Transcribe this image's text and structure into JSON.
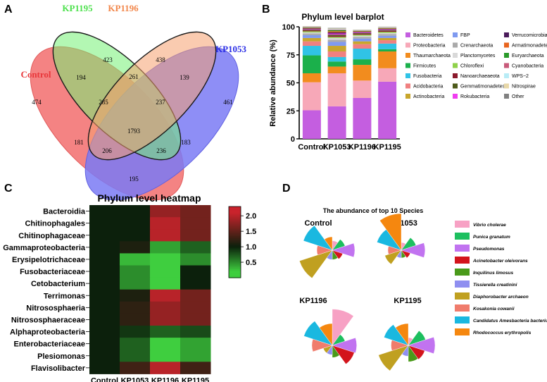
{
  "panel_letters": {
    "a": "A",
    "b": "B",
    "c": "C",
    "d": "D"
  },
  "colors": {
    "control": "#f26d6d",
    "kp1195": "#74f074",
    "kp1196": "#f5a070",
    "kp1053": "#7a7af5",
    "control_text": "#e8373b",
    "kp1195_text": "#4ee14e",
    "kp1196_text": "#f2874b",
    "kp1053_text": "#2b2ee6",
    "heat_low": "#3fce3f",
    "heat_mid": "#0c200c",
    "heat_high": "#c9232c"
  },
  "chart_data": [
    {
      "type": "venn",
      "sets": [
        "Control",
        "KP1195",
        "KP1196",
        "KP1053"
      ],
      "regions": [
        {
          "sets": [
            "Control"
          ],
          "value": 474
        },
        {
          "sets": [
            "KP1195"
          ],
          "value": 423
        },
        {
          "sets": [
            "KP1196"
          ],
          "value": 438
        },
        {
          "sets": [
            "KP1053"
          ],
          "value": 461
        },
        {
          "sets": [
            "Control",
            "KP1195"
          ],
          "value": 194
        },
        {
          "sets": [
            "KP1195",
            "KP1196"
          ],
          "value": 261
        },
        {
          "sets": [
            "KP1196",
            "KP1053"
          ],
          "value": 139
        },
        {
          "sets": [
            "Control",
            "KP1195",
            "KP1196"
          ],
          "value": 285
        },
        {
          "sets": [
            "KP1195",
            "KP1196",
            "KP1053"
          ],
          "value": 237
        },
        {
          "sets": [
            "Control",
            "KP1195",
            "KP1196",
            "KP1053"
          ],
          "value": 1793
        },
        {
          "sets": [
            "Control",
            "KP1053"
          ],
          "value": 195
        },
        {
          "sets": [
            "Control",
            "KP1196"
          ],
          "value": 181
        },
        {
          "sets": [
            "KP1195",
            "KP1053"
          ],
          "value": 183
        },
        {
          "sets": [
            "Control",
            "KP1196",
            "KP1053"
          ],
          "value": 206
        },
        {
          "sets": [
            "Control",
            "KP1195",
            "KP1053"
          ],
          "value": 236
        }
      ]
    },
    {
      "type": "bar",
      "stacked": true,
      "title": "Phylum level barplot",
      "ylabel": "Relative abundance (%)",
      "ylim": [
        0,
        100
      ],
      "yticks": [
        0,
        25,
        50,
        75,
        100
      ],
      "categories": [
        "Control",
        "KP1053",
        "KP1196",
        "KP1195"
      ],
      "series": [
        {
          "name": "Bacteroidetes",
          "color": "#c45ee0",
          "values": [
            25.5,
            29,
            36.5,
            51
          ]
        },
        {
          "name": "Proteobacteria",
          "color": "#f7a8b8",
          "values": [
            25,
            29.5,
            15.5,
            12
          ]
        },
        {
          "name": "Thaumarchaeota",
          "color": "#f28c1e",
          "values": [
            8,
            6,
            14,
            15
          ]
        },
        {
          "name": "Firmicutes",
          "color": "#1bb04b",
          "values": [
            16,
            4.5,
            5,
            2
          ]
        },
        {
          "name": "Fusobacteria",
          "color": "#30c3e6",
          "values": [
            8.5,
            4,
            9.5,
            5
          ]
        },
        {
          "name": "Acidobacteria",
          "color": "#f08080",
          "values": [
            4,
            5,
            4,
            3
          ]
        },
        {
          "name": "Actinobacteria",
          "color": "#c8a62c",
          "values": [
            3,
            5,
            2.5,
            2
          ]
        },
        {
          "name": "FBP",
          "color": "#7f9af0",
          "values": [
            2.5,
            3.5,
            2.5,
            2
          ]
        },
        {
          "name": "Crenarchaeota",
          "color": "#aaaaaa",
          "values": [
            1.5,
            2,
            1.5,
            1.5
          ]
        },
        {
          "name": "Planctomycetes",
          "color": "#d9d9d9",
          "values": [
            1,
            1.5,
            1,
            1
          ]
        },
        {
          "name": "Chloroflexi",
          "color": "#8fd14a",
          "values": [
            1,
            1,
            1,
            1
          ]
        },
        {
          "name": "Nanoarchaeaeota",
          "color": "#8b1a2c",
          "values": [
            0.8,
            1,
            0.8,
            0.8
          ]
        },
        {
          "name": "Gemmatimonadetes",
          "color": "#4d5a1a",
          "values": [
            0.6,
            1,
            0.6,
            0.6
          ]
        },
        {
          "name": "Rokubacteria",
          "color": "#f03cf0",
          "values": [
            0.5,
            1,
            0.5,
            0.5
          ]
        },
        {
          "name": "Verrucomicrobia",
          "color": "#4a1a5a",
          "values": [
            0.6,
            1,
            0.6,
            0.6
          ]
        },
        {
          "name": "Armatimonadetes",
          "color": "#e8641e",
          "values": [
            0.5,
            1,
            0.5,
            0.5
          ]
        },
        {
          "name": "Euryarchaeota",
          "color": "#2a9a2a",
          "values": [
            0.4,
            1,
            0.4,
            0.4
          ]
        },
        {
          "name": "Cyanobacteria",
          "color": "#c85a7a",
          "values": [
            0.3,
            0.5,
            0.3,
            0.3
          ]
        },
        {
          "name": "WPS−2",
          "color": "#b8ecf6",
          "values": [
            0.3,
            0.5,
            0.3,
            0.3
          ]
        },
        {
          "name": "Nitrospirae",
          "color": "#e8d8a8",
          "values": [
            0.3,
            0.5,
            0.3,
            0.3
          ]
        },
        {
          "name": "Other",
          "color": "#808080",
          "values": [
            0.2,
            0.5,
            0.2,
            0.3
          ]
        }
      ]
    },
    {
      "type": "heatmap",
      "title": "Phylum level heatmap",
      "columns": [
        "Control",
        "KP1053",
        "KP1196",
        "KP1195"
      ],
      "rows": [
        "Bacteroidia",
        "Chitinophagales",
        "Chitinophagaceae",
        "Gammaproteobacteria",
        "Erysipelotrichaceae",
        "Fusobacteriaceae",
        "Cetobacterium",
        "Terrimonas",
        "Nitrososphaeria",
        "Nitrososphaeraceae",
        "Alphaproteobacteria",
        "Enterobacteriaceae",
        "Plesiomonas",
        "Flavisolibacter"
      ],
      "values": [
        [
          1.0,
          1.0,
          1.8,
          1.6
        ],
        [
          1.0,
          1.0,
          2.0,
          1.6
        ],
        [
          1.0,
          1.0,
          2.0,
          1.6
        ],
        [
          1.0,
          1.1,
          0.4,
          0.7
        ],
        [
          1.0,
          0.3,
          0.2,
          0.5
        ],
        [
          1.0,
          0.5,
          0.2,
          1.0
        ],
        [
          1.0,
          0.5,
          0.2,
          1.0
        ],
        [
          1.0,
          1.1,
          2.0,
          1.6
        ],
        [
          1.0,
          1.2,
          1.8,
          1.6
        ],
        [
          1.0,
          1.2,
          1.8,
          1.6
        ],
        [
          1.0,
          0.9,
          0.7,
          0.8
        ],
        [
          1.0,
          0.7,
          0.2,
          0.4
        ],
        [
          1.0,
          0.7,
          0.2,
          0.4
        ],
        [
          1.0,
          1.3,
          2.0,
          1.3
        ]
      ],
      "colorbar": {
        "min": 0,
        "max": 2.3,
        "ticks": [
          0.5,
          1.0,
          1.5,
          2.0
        ],
        "tick_labels": [
          "0.5",
          "1.0",
          "1.5",
          "2.0"
        ]
      }
    },
    {
      "type": "rose",
      "title": "The abundance of top 10 Species",
      "species": [
        {
          "name": "Vibrio cholerae",
          "color": "#f7a1c4"
        },
        {
          "name": "Punica granatum",
          "color": "#1dbf5f"
        },
        {
          "name": "Pseudomonas",
          "color": "#c173f0"
        },
        {
          "name": "Acinetobacter oleivorans",
          "color": "#d3141c"
        },
        {
          "name": "Inquilinus limosus",
          "color": "#4a9a1a"
        },
        {
          "name": "Tissierella creatinini",
          "color": "#8f8ff0"
        },
        {
          "name": "Diaphorobacter archaeon",
          "color": "#c0a020"
        },
        {
          "name": "Kosakonia cowanii",
          "color": "#f07c6c"
        },
        {
          "name": "Candidatus Amesbacteria bacterium",
          "color": "#1ab8e0"
        },
        {
          "name": "Rhodococcus erythropolis",
          "color": "#f5870f"
        }
      ],
      "groups": [
        {
          "name": "Control",
          "values": [
            3,
            6,
            17,
            4,
            3,
            3,
            40,
            8,
            31,
            6
          ]
        },
        {
          "name": "KP1053",
          "values": [
            2,
            8,
            19,
            3,
            2,
            2,
            10,
            6,
            22,
            45
          ]
        },
        {
          "name": "KP1196",
          "values": [
            44,
            6,
            20,
            18,
            5,
            3,
            3,
            14,
            30,
            16
          ]
        },
        {
          "name": "KP1195",
          "values": [
            2,
            11,
            24,
            10,
            9,
            4,
            33,
            10,
            22,
            16
          ]
        }
      ]
    }
  ]
}
